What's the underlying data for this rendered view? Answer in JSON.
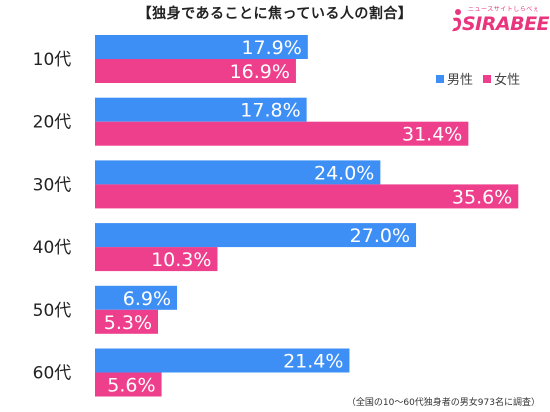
{
  "title": "【独身であることに焦っている人の割合】",
  "logo": {
    "brand": "SIRABEE",
    "tagline": "ニュースサイトしらべぇ"
  },
  "footnote": "（全国の10～60代独身者の男女973名に調査）",
  "colors": {
    "male": "#3d8ff5",
    "female": "#ed3f8c",
    "label": "#ffffff"
  },
  "chart_data": {
    "type": "bar",
    "orientation": "horizontal",
    "categories": [
      "10代",
      "20代",
      "30代",
      "40代",
      "50代",
      "60代"
    ],
    "series": [
      {
        "name": "男性",
        "values": [
          17.9,
          17.8,
          24.0,
          27.0,
          6.9,
          21.4
        ],
        "labels": [
          "17.9%",
          "17.8%",
          "24.0%",
          "27.0%",
          "6.9%",
          "21.4%"
        ]
      },
      {
        "name": "女性",
        "values": [
          16.9,
          31.4,
          35.6,
          10.3,
          5.3,
          5.6
        ],
        "labels": [
          "16.9%",
          "31.4%",
          "35.6%",
          "10.3%",
          "5.3%",
          "5.6%"
        ]
      }
    ],
    "xlim": [
      0,
      40
    ],
    "legend_position": "top-right",
    "grid": false
  }
}
